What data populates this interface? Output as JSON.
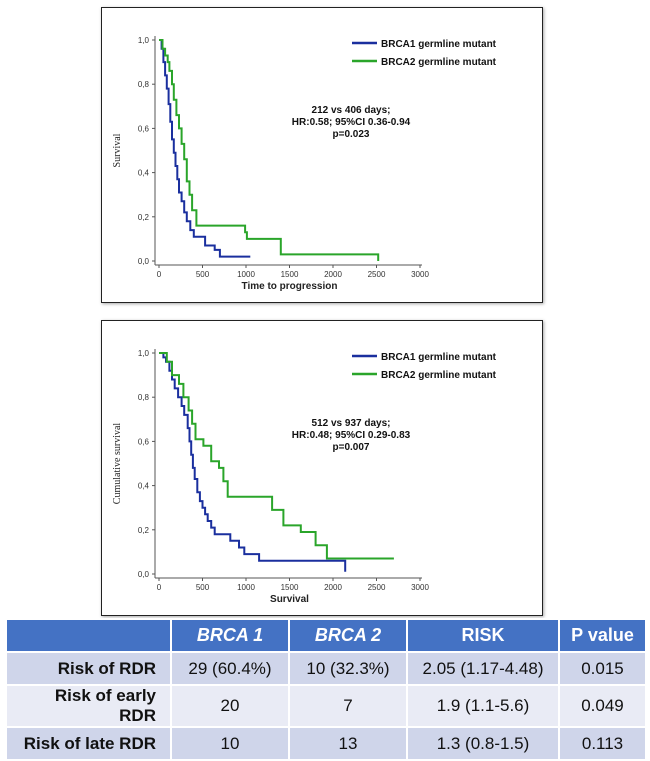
{
  "chart_data": [
    {
      "type": "line",
      "subtype": "kaplan-meier",
      "title": "",
      "xlabel": "Time to progression",
      "ylabel": "Survival",
      "xlim": [
        0,
        3000
      ],
      "ylim": [
        0,
        1
      ],
      "x_ticks": [
        "0",
        "500",
        "1000",
        "1500",
        "2000",
        "2500",
        "3000"
      ],
      "x_tick_values": [
        0,
        500,
        1000,
        1500,
        2000,
        2500,
        3000
      ],
      "y_ticks": [
        "0,0",
        "0,2",
        "0,4",
        "0,6",
        "0,8",
        "1,0"
      ],
      "y_tick_values": [
        0,
        0.2,
        0.4,
        0.6,
        0.8,
        1.0
      ],
      "legend_position": "top-right",
      "annotation": [
        "212 vs 406 days;",
        "HR:0.58; 95%CI 0.36-0.94",
        "p=0.023"
      ],
      "series": [
        {
          "name": "BRCA1 germline mutant",
          "color": "#1a2f9e",
          "points": [
            [
              0,
              1.0
            ],
            [
              30,
              1.0
            ],
            [
              30,
              0.96
            ],
            [
              50,
              0.96
            ],
            [
              50,
              0.9
            ],
            [
              70,
              0.9
            ],
            [
              70,
              0.84
            ],
            [
              90,
              0.84
            ],
            [
              90,
              0.78
            ],
            [
              110,
              0.78
            ],
            [
              110,
              0.71
            ],
            [
              130,
              0.71
            ],
            [
              130,
              0.63
            ],
            [
              150,
              0.63
            ],
            [
              150,
              0.55
            ],
            [
              170,
              0.55
            ],
            [
              170,
              0.49
            ],
            [
              190,
              0.49
            ],
            [
              190,
              0.43
            ],
            [
              210,
              0.43
            ],
            [
              210,
              0.37
            ],
            [
              230,
              0.37
            ],
            [
              230,
              0.31
            ],
            [
              260,
              0.31
            ],
            [
              260,
              0.27
            ],
            [
              290,
              0.27
            ],
            [
              290,
              0.22
            ],
            [
              320,
              0.22
            ],
            [
              320,
              0.18
            ],
            [
              360,
              0.18
            ],
            [
              360,
              0.14
            ],
            [
              400,
              0.14
            ],
            [
              400,
              0.11
            ],
            [
              530,
              0.11
            ],
            [
              530,
              0.07
            ],
            [
              640,
              0.07
            ],
            [
              640,
              0.05
            ],
            [
              700,
              0.05
            ],
            [
              700,
              0.02
            ],
            [
              1050,
              0.02
            ]
          ]
        },
        {
          "name": "BRCA2 germline mutant",
          "color": "#2aa52a",
          "points": [
            [
              0,
              1.0
            ],
            [
              40,
              1.0
            ],
            [
              40,
              0.96
            ],
            [
              70,
              0.96
            ],
            [
              70,
              0.93
            ],
            [
              100,
              0.93
            ],
            [
              100,
              0.9
            ],
            [
              120,
              0.9
            ],
            [
              120,
              0.86
            ],
            [
              150,
              0.86
            ],
            [
              150,
              0.8
            ],
            [
              170,
              0.8
            ],
            [
              170,
              0.73
            ],
            [
              200,
              0.73
            ],
            [
              200,
              0.66
            ],
            [
              230,
              0.66
            ],
            [
              230,
              0.6
            ],
            [
              260,
              0.6
            ],
            [
              260,
              0.53
            ],
            [
              290,
              0.53
            ],
            [
              290,
              0.46
            ],
            [
              320,
              0.46
            ],
            [
              320,
              0.36
            ],
            [
              350,
              0.36
            ],
            [
              350,
              0.3
            ],
            [
              380,
              0.3
            ],
            [
              380,
              0.23
            ],
            [
              430,
              0.23
            ],
            [
              430,
              0.16
            ],
            [
              990,
              0.16
            ],
            [
              990,
              0.13
            ],
            [
              1010,
              0.13
            ],
            [
              1010,
              0.1
            ],
            [
              1400,
              0.1
            ],
            [
              1400,
              0.03
            ],
            [
              2520,
              0.03
            ],
            [
              2520,
              0.0
            ]
          ]
        }
      ]
    },
    {
      "type": "line",
      "subtype": "kaplan-meier",
      "title": "",
      "xlabel": "Survival",
      "ylabel": "Cumulative survival",
      "xlim": [
        0,
        3000
      ],
      "ylim": [
        0,
        1
      ],
      "x_ticks": [
        "0",
        "500",
        "1000",
        "1500",
        "2000",
        "2500",
        "3000"
      ],
      "x_tick_values": [
        0,
        500,
        1000,
        1500,
        2000,
        2500,
        3000
      ],
      "y_ticks": [
        "0,0",
        "0,2",
        "0,4",
        "0,6",
        "0,8",
        "1,0"
      ],
      "y_tick_values": [
        0,
        0.2,
        0.4,
        0.6,
        0.8,
        1.0
      ],
      "legend_position": "top-right",
      "annotation": [
        "512 vs 937 days;",
        "HR:0.48; 95%CI 0.29-0.83",
        "p=0.007"
      ],
      "series": [
        {
          "name": "BRCA1 germline mutant",
          "color": "#1a2f9e",
          "points": [
            [
              0,
              1.0
            ],
            [
              50,
              1.0
            ],
            [
              50,
              0.98
            ],
            [
              80,
              0.98
            ],
            [
              80,
              0.96
            ],
            [
              120,
              0.96
            ],
            [
              120,
              0.92
            ],
            [
              150,
              0.92
            ],
            [
              150,
              0.88
            ],
            [
              180,
              0.88
            ],
            [
              180,
              0.84
            ],
            [
              220,
              0.84
            ],
            [
              220,
              0.8
            ],
            [
              260,
              0.8
            ],
            [
              260,
              0.76
            ],
            [
              290,
              0.76
            ],
            [
              290,
              0.72
            ],
            [
              330,
              0.72
            ],
            [
              330,
              0.66
            ],
            [
              350,
              0.66
            ],
            [
              350,
              0.6
            ],
            [
              370,
              0.6
            ],
            [
              370,
              0.54
            ],
            [
              390,
              0.54
            ],
            [
              390,
              0.48
            ],
            [
              410,
              0.48
            ],
            [
              410,
              0.43
            ],
            [
              440,
              0.43
            ],
            [
              440,
              0.37
            ],
            [
              470,
              0.37
            ],
            [
              470,
              0.33
            ],
            [
              500,
              0.33
            ],
            [
              500,
              0.3
            ],
            [
              530,
              0.3
            ],
            [
              530,
              0.27
            ],
            [
              560,
              0.27
            ],
            [
              560,
              0.24
            ],
            [
              600,
              0.24
            ],
            [
              600,
              0.21
            ],
            [
              640,
              0.21
            ],
            [
              640,
              0.18
            ],
            [
              820,
              0.18
            ],
            [
              820,
              0.15
            ],
            [
              920,
              0.15
            ],
            [
              920,
              0.12
            ],
            [
              980,
              0.12
            ],
            [
              980,
              0.09
            ],
            [
              1150,
              0.09
            ],
            [
              1150,
              0.06
            ],
            [
              2140,
              0.06
            ],
            [
              2140,
              0.01
            ]
          ]
        },
        {
          "name": "BRCA2 germline mutant",
          "color": "#2aa52a",
          "points": [
            [
              0,
              1.0
            ],
            [
              90,
              1.0
            ],
            [
              90,
              0.96
            ],
            [
              150,
              0.96
            ],
            [
              150,
              0.9
            ],
            [
              230,
              0.9
            ],
            [
              230,
              0.86
            ],
            [
              280,
              0.86
            ],
            [
              280,
              0.8
            ],
            [
              340,
              0.8
            ],
            [
              340,
              0.74
            ],
            [
              380,
              0.74
            ],
            [
              380,
              0.68
            ],
            [
              420,
              0.68
            ],
            [
              420,
              0.61
            ],
            [
              510,
              0.61
            ],
            [
              510,
              0.58
            ],
            [
              600,
              0.58
            ],
            [
              600,
              0.51
            ],
            [
              690,
              0.51
            ],
            [
              690,
              0.48
            ],
            [
              740,
              0.48
            ],
            [
              740,
              0.42
            ],
            [
              790,
              0.42
            ],
            [
              790,
              0.35
            ],
            [
              1300,
              0.35
            ],
            [
              1300,
              0.29
            ],
            [
              1430,
              0.29
            ],
            [
              1430,
              0.22
            ],
            [
              1630,
              0.22
            ],
            [
              1630,
              0.19
            ],
            [
              1800,
              0.19
            ],
            [
              1800,
              0.13
            ],
            [
              1930,
              0.13
            ],
            [
              1930,
              0.07
            ],
            [
              2700,
              0.07
            ]
          ]
        }
      ]
    },
    {
      "type": "table",
      "columns": [
        "",
        "BRCA 1",
        "BRCA 2",
        "RISK",
        "P value"
      ],
      "rows": [
        [
          "Risk of RDR",
          "29 (60.4%)",
          "10 (32.3%)",
          "2.05 (1.17-4.48)",
          "0.015"
        ],
        [
          "Risk of early RDR",
          "20",
          "7",
          "1.9 (1.1-5.6)",
          "0.049"
        ],
        [
          "Risk of late RDR",
          "10",
          "13",
          "1.3 (0.8-1.5)",
          "0.113"
        ]
      ]
    }
  ],
  "table": {
    "headers": [
      "",
      "BRCA 1",
      "BRCA 2",
      "RISK",
      "P value"
    ],
    "rows": [
      [
        "Risk of RDR",
        "29 (60.4%)",
        "10 (32.3%)",
        "2.05 (1.17-4.48)",
        "0.015"
      ],
      [
        "Risk of early RDR",
        "20",
        "7",
        "1.9 (1.1-5.6)",
        "0.049"
      ],
      [
        "Risk of late RDR",
        "10",
        "13",
        "1.3 (0.8-1.5)",
        "0.113"
      ]
    ]
  }
}
